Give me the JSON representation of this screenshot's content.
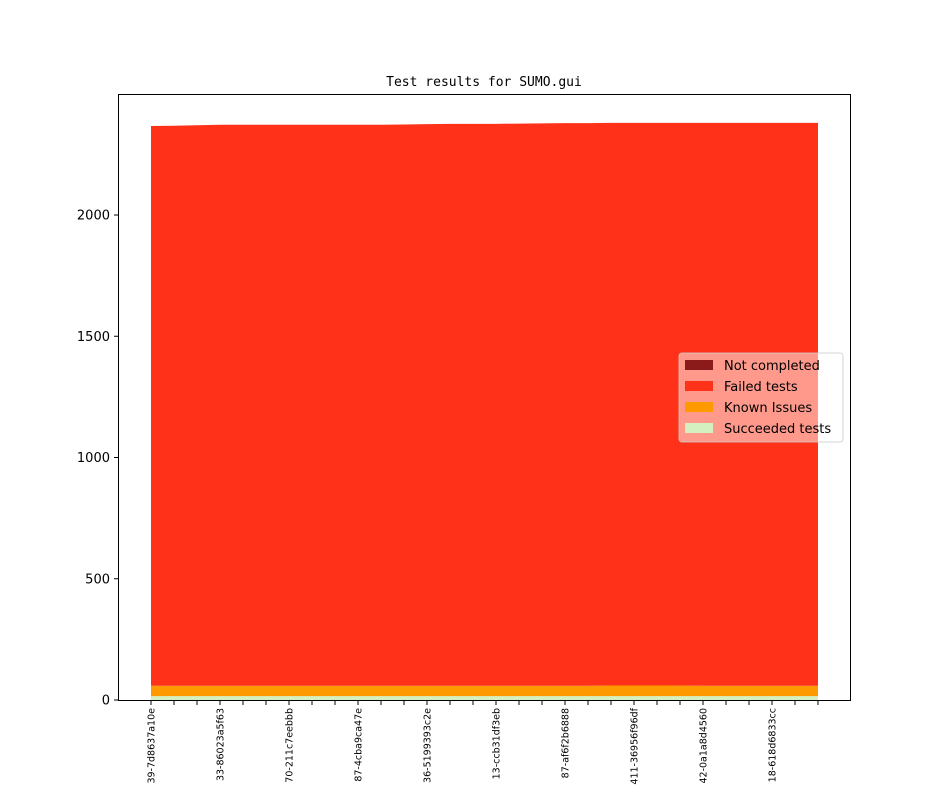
{
  "chart_data": {
    "type": "area",
    "stacked": true,
    "title": "Test results for SUMO.gui",
    "xlabel": "",
    "ylabel": "",
    "ylim": [
      0,
      2490
    ],
    "yticks": [
      0,
      500,
      1000,
      1500,
      2000
    ],
    "xtick_labels": [
      "39-7d8637a10e",
      "33-86023a5f63",
      "70-211c7eebbb",
      "87-4cba9ca47e",
      "36-5199393c2e",
      "13-ccb31df3eb",
      "87-af6f2b6888",
      "411-36956f96df",
      "42-0a1a8d4560",
      "18-618d6833cc"
    ],
    "xtick_label_every": 3,
    "grid": false,
    "legend_position": "center-right",
    "series": [
      {
        "name": "Succeeded tests",
        "color": "#d4efc0",
        "values": [
          16,
          16,
          16,
          16,
          16,
          16,
          16,
          16,
          16,
          16,
          16,
          16,
          16,
          16,
          16,
          16,
          16,
          16,
          16,
          16,
          16,
          16,
          16,
          16,
          16,
          16,
          16,
          16,
          16,
          16
        ]
      },
      {
        "name": "Known Issues",
        "color": "#ff9900",
        "values": [
          43,
          43,
          43,
          43,
          43,
          43,
          43,
          43,
          43,
          43,
          43,
          43,
          43,
          43,
          43,
          43,
          43,
          43,
          43,
          43,
          44,
          44,
          44,
          44,
          43,
          43,
          43,
          43,
          43,
          43
        ]
      },
      {
        "name": "Failed tests",
        "color": "#ff3219",
        "values": [
          2308,
          2309,
          2311,
          2313,
          2313,
          2313,
          2313,
          2313,
          2313,
          2313,
          2313,
          2314,
          2316,
          2317,
          2317,
          2317,
          2318,
          2319,
          2320,
          2320,
          2320,
          2320,
          2320,
          2320,
          2321,
          2321,
          2321,
          2321,
          2321,
          2321
        ]
      },
      {
        "name": "Not completed",
        "color": "#8b1a1a",
        "values": [
          0,
          0,
          0,
          0,
          0,
          0,
          0,
          0,
          0,
          0,
          0,
          0,
          0,
          0,
          0,
          0,
          0,
          0,
          0,
          0,
          0,
          0,
          0,
          0,
          0,
          0,
          0,
          0,
          0,
          0
        ]
      }
    ],
    "legend_order": [
      "Not completed",
      "Failed tests",
      "Known Issues",
      "Succeeded tests"
    ]
  }
}
